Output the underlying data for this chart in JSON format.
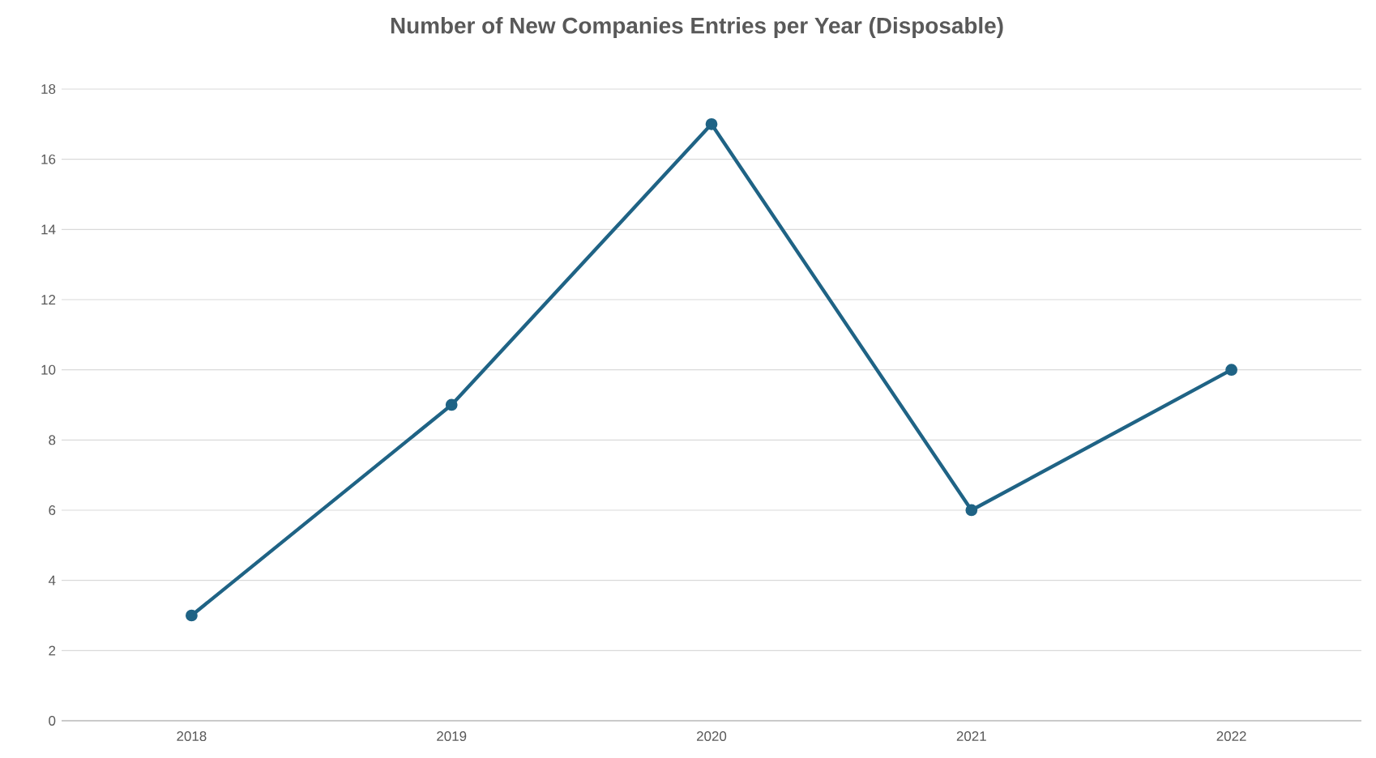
{
  "chart_data": {
    "type": "line",
    "title": "Number of New Companies Entries per Year (Disposable)",
    "categories": [
      "2018",
      "2019",
      "2020",
      "2021",
      "2022"
    ],
    "values": [
      3,
      9,
      17,
      6,
      10
    ],
    "color": "#1f6385",
    "ylim": [
      0,
      18
    ],
    "yticks": [
      0,
      2,
      4,
      6,
      8,
      10,
      12,
      14,
      16,
      18
    ],
    "grid": "y",
    "marker": "circle",
    "line_style": "solid"
  }
}
